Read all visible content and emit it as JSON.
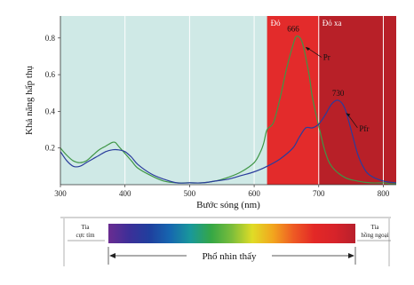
{
  "chart_data": {
    "type": "line",
    "xlabel": "Bước sóng (nm)",
    "ylabel": "Khả năng hấp thụ",
    "xlim": [
      300,
      820
    ],
    "ylim": [
      0,
      0.92
    ],
    "xticks": [
      300,
      400,
      500,
      600,
      700,
      800
    ],
    "yticks": [
      0.2,
      0.4,
      0.6,
      0.8
    ],
    "grid": "vertical",
    "background_color": "#cfe9e6",
    "bands": [
      {
        "label": "Đỏ",
        "x_from": 620,
        "x_to": 700,
        "color": "#e32b2b"
      },
      {
        "label": "Đỏ xa",
        "x_from": 700,
        "x_to": 820,
        "color": "#b82028"
      }
    ],
    "series": [
      {
        "name": "Pr",
        "color": "#3f9646",
        "x": [
          300,
          310,
          320,
          330,
          340,
          350,
          360,
          370,
          380,
          385,
          390,
          400,
          410,
          420,
          440,
          460,
          480,
          500,
          520,
          540,
          560,
          580,
          600,
          610,
          615,
          620,
          630,
          640,
          650,
          660,
          666,
          675,
          685,
          690,
          700,
          710,
          720,
          740,
          760,
          780,
          800,
          810,
          820
        ],
        "y": [
          0.2,
          0.16,
          0.13,
          0.12,
          0.13,
          0.16,
          0.19,
          0.21,
          0.23,
          0.23,
          0.21,
          0.17,
          0.13,
          0.09,
          0.05,
          0.02,
          0.01,
          0.01,
          0.01,
          0.02,
          0.04,
          0.07,
          0.12,
          0.18,
          0.23,
          0.3,
          0.34,
          0.47,
          0.63,
          0.76,
          0.81,
          0.77,
          0.6,
          0.48,
          0.32,
          0.18,
          0.1,
          0.04,
          0.02,
          0.01,
          0.01,
          0.005,
          0.005
        ]
      },
      {
        "name": "Pfr",
        "color": "#2a3d9c",
        "x": [
          300,
          310,
          320,
          330,
          340,
          350,
          360,
          370,
          380,
          390,
          400,
          410,
          420,
          440,
          460,
          480,
          500,
          520,
          540,
          560,
          580,
          600,
          620,
          640,
          660,
          670,
          680,
          690,
          700,
          710,
          720,
          730,
          740,
          750,
          760,
          770,
          780,
          800,
          820
        ],
        "y": [
          0.18,
          0.13,
          0.1,
          0.1,
          0.12,
          0.14,
          0.16,
          0.18,
          0.19,
          0.19,
          0.18,
          0.15,
          0.11,
          0.06,
          0.03,
          0.01,
          0.01,
          0.01,
          0.02,
          0.03,
          0.05,
          0.07,
          0.1,
          0.14,
          0.2,
          0.26,
          0.31,
          0.31,
          0.33,
          0.38,
          0.44,
          0.46,
          0.42,
          0.3,
          0.17,
          0.09,
          0.05,
          0.02,
          0.01
        ]
      }
    ],
    "annotations": [
      {
        "text": "666",
        "x": 666,
        "y": 0.81
      },
      {
        "text": "Pr",
        "x": 700,
        "y": 0.7
      },
      {
        "text": "730",
        "x": 730,
        "y": 0.46
      },
      {
        "text": "Pfr",
        "x": 760,
        "y": 0.31
      }
    ]
  },
  "spectrum": {
    "left_label_line1": "Tia",
    "left_label_line2": "cực tím",
    "right_label_line1": "Tia",
    "right_label_line2": "hồng ngoại",
    "visible_label": "Phổ nhìn thấy",
    "colors": [
      "#6a2c91",
      "#3d2f98",
      "#1f3f9e",
      "#1667b0",
      "#19989a",
      "#35a745",
      "#7bbd3b",
      "#e0dc26",
      "#f2a51e",
      "#ee5a24",
      "#e32826",
      "#d7232a",
      "#b8202c"
    ]
  }
}
